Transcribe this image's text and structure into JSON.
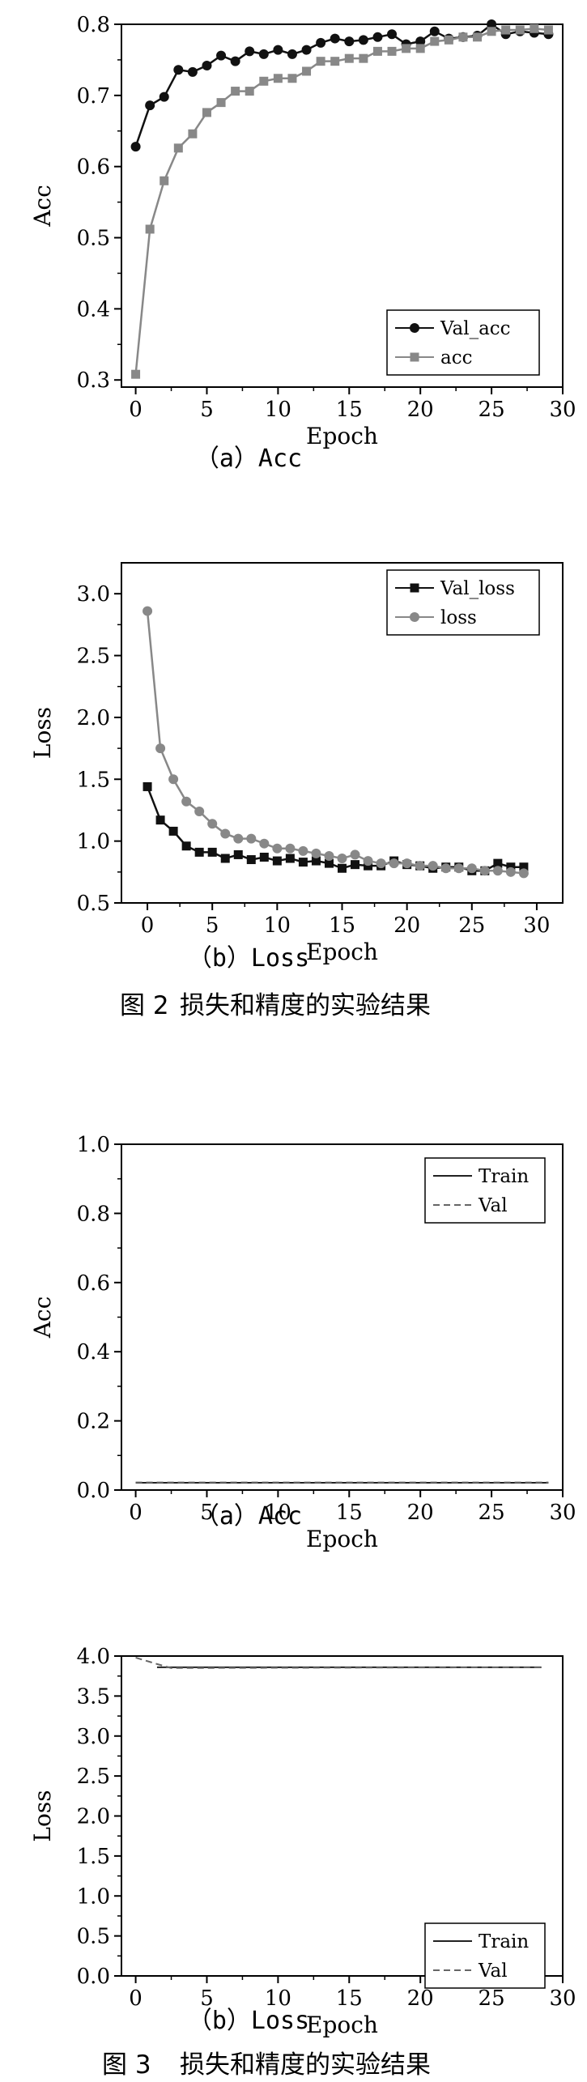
{
  "figure2": {
    "caption_number": "图 2",
    "caption_text": "损失和精度的实验结果"
  },
  "figure3": {
    "caption_number": "图 3",
    "caption_text": "损失和精度的实验结果"
  },
  "chart_data": [
    {
      "type": "line",
      "panel_caption": "（a）Acc",
      "xlabel": "Epoch",
      "ylabel": "Acc",
      "xlim": [
        -1,
        30
      ],
      "ylim": [
        0.29,
        0.8
      ],
      "xticks": [
        0,
        5,
        10,
        15,
        20,
        25,
        30
      ],
      "yticks": [
        0.3,
        0.4,
        0.5,
        0.6,
        0.7,
        0.8
      ],
      "grid": false,
      "legend": "bottom-right",
      "x": [
        0,
        1,
        2,
        3,
        4,
        5,
        6,
        7,
        8,
        9,
        10,
        11,
        12,
        13,
        14,
        15,
        16,
        17,
        18,
        19,
        20,
        21,
        22,
        23,
        24,
        25,
        26,
        27,
        28,
        29
      ],
      "series": [
        {
          "name": "Val_acc",
          "marker": "circle",
          "color": "#111111",
          "values": [
            0.628,
            0.686,
            0.698,
            0.736,
            0.733,
            0.742,
            0.756,
            0.748,
            0.762,
            0.758,
            0.764,
            0.758,
            0.764,
            0.774,
            0.78,
            0.776,
            0.778,
            0.782,
            0.786,
            0.772,
            0.776,
            0.79,
            0.78,
            0.782,
            0.784,
            0.8,
            0.786,
            0.79,
            0.788,
            0.786
          ]
        },
        {
          "name": "acc",
          "marker": "square",
          "color": "#888888",
          "values": [
            0.308,
            0.512,
            0.58,
            0.626,
            0.646,
            0.676,
            0.69,
            0.706,
            0.706,
            0.72,
            0.724,
            0.724,
            0.734,
            0.748,
            0.748,
            0.752,
            0.752,
            0.762,
            0.762,
            0.766,
            0.766,
            0.776,
            0.778,
            0.782,
            0.782,
            0.79,
            0.792,
            0.792,
            0.794,
            0.792
          ]
        }
      ]
    },
    {
      "type": "line",
      "panel_caption": "（b）Loss",
      "xlabel": "Epoch",
      "ylabel": "Loss",
      "xlim": [
        -2,
        32
      ],
      "ylim": [
        0.5,
        3.25
      ],
      "xticks": [
        0,
        5,
        10,
        15,
        20,
        25,
        30
      ],
      "yticks": [
        0.5,
        1.0,
        1.5,
        2.0,
        2.5,
        3.0
      ],
      "grid": false,
      "legend": "top-right",
      "x": [
        0,
        1,
        2,
        3,
        4,
        5,
        6,
        7,
        8,
        9,
        10,
        11,
        12,
        13,
        14,
        15,
        16,
        17,
        18,
        19,
        20,
        21,
        22,
        23,
        24,
        25,
        26,
        27,
        28,
        29
      ],
      "series": [
        {
          "name": "Val_loss",
          "marker": "square",
          "color": "#111111",
          "values": [
            1.44,
            1.17,
            1.08,
            0.96,
            0.91,
            0.91,
            0.86,
            0.89,
            0.85,
            0.87,
            0.84,
            0.86,
            0.83,
            0.84,
            0.82,
            0.78,
            0.81,
            0.8,
            0.8,
            0.84,
            0.81,
            0.8,
            0.78,
            0.79,
            0.79,
            0.76,
            0.76,
            0.82,
            0.79,
            0.79
          ]
        },
        {
          "name": "loss",
          "marker": "circle",
          "color": "#888888",
          "values": [
            2.86,
            1.75,
            1.5,
            1.32,
            1.24,
            1.14,
            1.06,
            1.02,
            1.02,
            0.98,
            0.94,
            0.94,
            0.92,
            0.9,
            0.88,
            0.86,
            0.89,
            0.84,
            0.82,
            0.82,
            0.82,
            0.8,
            0.8,
            0.78,
            0.78,
            0.78,
            0.76,
            0.76,
            0.75,
            0.74
          ]
        }
      ]
    },
    {
      "type": "line",
      "panel_caption": "（a）Acc",
      "xlabel": "Epoch",
      "ylabel": "Acc",
      "xlim": [
        -1,
        30
      ],
      "ylim": [
        0,
        1.0
      ],
      "xticks": [
        0,
        5,
        10,
        15,
        20,
        25,
        30
      ],
      "yticks": [
        0,
        0.2,
        0.4,
        0.6,
        0.8,
        1.0
      ],
      "grid": false,
      "legend": "top-right",
      "x": [
        0,
        29
      ],
      "series": [
        {
          "name": "Train",
          "style": "solid",
          "color": "#222222",
          "values": [
            0.021,
            0.021
          ]
        },
        {
          "name": "Val",
          "style": "dashed",
          "color": "#666666",
          "values": [
            0.022,
            0.022
          ]
        }
      ]
    },
    {
      "type": "line",
      "panel_caption": "（b）Loss",
      "xlabel": "Epoch",
      "ylabel": "Loss",
      "xlim": [
        -1,
        30
      ],
      "ylim": [
        0,
        4.0
      ],
      "xticks": [
        0,
        5,
        10,
        15,
        20,
        25,
        30
      ],
      "yticks": [
        0,
        0.5,
        1.0,
        1.5,
        2.0,
        2.5,
        3.0,
        3.5,
        4.0
      ],
      "grid": false,
      "legend": "bottom-right",
      "x_train": [
        1.5,
        28.5
      ],
      "x_val": [
        0,
        1.5,
        2.5,
        28.5
      ],
      "series": [
        {
          "name": "Train",
          "style": "solid",
          "color": "#222222",
          "values": [
            3.86,
            3.86
          ]
        },
        {
          "name": "Val",
          "style": "dashed",
          "color": "#666666",
          "values": [
            3.98,
            3.9,
            3.85,
            3.86
          ]
        }
      ]
    }
  ]
}
